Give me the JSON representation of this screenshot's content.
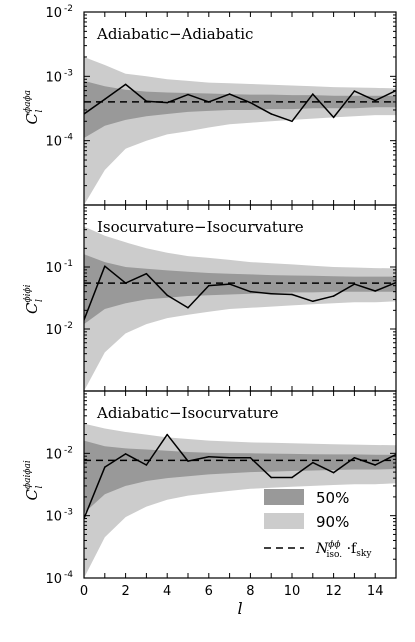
{
  "chart_data": [
    {
      "type": "area",
      "title": "Adiabatic−Adiabatic",
      "ylabel": {
        "main": "C",
        "sub": "l",
        "sup": "ϕaϕa"
      },
      "yscale": "log",
      "ylim": [
        1e-05,
        0.01
      ],
      "ytick_values": [
        0.0001,
        0.001,
        0.01
      ],
      "ytick_labels": [
        {
          "base": "10",
          "exp": "-4"
        },
        {
          "base": "10",
          "exp": "-3"
        },
        {
          "base": "10",
          "exp": "-2"
        }
      ],
      "xlim": [
        0,
        15
      ],
      "noise_level": 0.0004,
      "x": [
        0,
        1,
        2,
        3,
        4,
        5,
        6,
        7,
        8,
        9,
        10,
        11,
        12,
        13,
        14,
        15
      ],
      "band90_lower": [
        1e-05,
        3.5e-05,
        7.5e-05,
        0.0001,
        0.000125,
        0.00014,
        0.00016,
        0.00018,
        0.00019,
        0.0002,
        0.00021,
        0.00022,
        0.00023,
        0.00024,
        0.00025,
        0.00025
      ],
      "band90_upper": [
        0.002,
        0.0015,
        0.0011,
        0.001,
        0.0009,
        0.00085,
        0.0008,
        0.00078,
        0.00076,
        0.00074,
        0.00072,
        0.0007,
        0.00068,
        0.00067,
        0.00066,
        0.00065
      ],
      "band50_lower": [
        0.00011,
        0.00017,
        0.00021,
        0.00024,
        0.00026,
        0.00028,
        0.00029,
        0.0003,
        0.0003,
        0.00031,
        0.00031,
        0.00032,
        0.00032,
        0.00032,
        0.00033,
        0.00033
      ],
      "band50_upper": [
        0.00085,
        0.0007,
        0.00062,
        0.00058,
        0.00056,
        0.00055,
        0.00054,
        0.00053,
        0.00052,
        0.00052,
        0.00051,
        0.00051,
        0.0005,
        0.0005,
        0.0005,
        0.0005
      ],
      "measured": [
        0.00026,
        0.00044,
        0.00075,
        0.00041,
        0.00039,
        0.00052,
        0.0004,
        0.00053,
        0.00039,
        0.00026,
        0.0002,
        0.00053,
        0.00023,
        0.00059,
        0.00042,
        0.0006
      ]
    },
    {
      "type": "area",
      "title": "Isocurvature−Isocurvature",
      "ylabel": {
        "main": "C",
        "sub": "l",
        "sup": "ϕiϕi"
      },
      "yscale": "log",
      "ylim": [
        0.001,
        1
      ],
      "ytick_values": [
        0.01,
        0.1
      ],
      "ytick_labels": [
        {
          "base": "10",
          "exp": "-2"
        },
        {
          "base": "10",
          "exp": "-1"
        }
      ],
      "xlim": [
        0,
        15
      ],
      "noise_level": 0.055,
      "x": [
        0,
        1,
        2,
        3,
        4,
        5,
        6,
        7,
        8,
        9,
        10,
        11,
        12,
        13,
        14,
        15
      ],
      "band90_lower": [
        0.001,
        0.0042,
        0.0085,
        0.012,
        0.015,
        0.017,
        0.019,
        0.021,
        0.022,
        0.023,
        0.024,
        0.025,
        0.026,
        0.027,
        0.027,
        0.028
      ],
      "band90_upper": [
        0.45,
        0.32,
        0.25,
        0.2,
        0.17,
        0.15,
        0.14,
        0.13,
        0.12,
        0.115,
        0.11,
        0.105,
        0.1,
        0.098,
        0.096,
        0.095
      ],
      "band50_lower": [
        0.012,
        0.021,
        0.026,
        0.03,
        0.032,
        0.034,
        0.035,
        0.036,
        0.037,
        0.038,
        0.039,
        0.039,
        0.04,
        0.04,
        0.04,
        0.04
      ],
      "band50_upper": [
        0.16,
        0.12,
        0.1,
        0.094,
        0.088,
        0.084,
        0.08,
        0.078,
        0.076,
        0.074,
        0.073,
        0.072,
        0.071,
        0.07,
        0.07,
        0.07
      ],
      "measured": [
        0.014,
        0.103,
        0.055,
        0.078,
        0.035,
        0.022,
        0.05,
        0.053,
        0.04,
        0.037,
        0.036,
        0.028,
        0.034,
        0.053,
        0.041,
        0.056
      ]
    },
    {
      "type": "area",
      "title": "Adiabatic−Isocurvature",
      "ylabel": {
        "main": "C",
        "sub": "l",
        "sup": "ϕaiϕai"
      },
      "yscale": "log",
      "ylim": [
        0.0001,
        0.1
      ],
      "ytick_values": [
        0.0001,
        0.001,
        0.01
      ],
      "ytick_labels": [
        {
          "base": "10",
          "exp": "-4"
        },
        {
          "base": "10",
          "exp": "-3"
        },
        {
          "base": "10",
          "exp": "-2"
        }
      ],
      "xlim": [
        0,
        15
      ],
      "xticks": [
        0,
        2,
        4,
        6,
        8,
        10,
        12,
        14
      ],
      "xlabel": "l",
      "noise_level": 0.0077,
      "x": [
        0,
        1,
        2,
        3,
        4,
        5,
        6,
        7,
        8,
        9,
        10,
        11,
        12,
        13,
        14,
        15
      ],
      "band90_lower": [
        0.0001,
        0.00045,
        0.00095,
        0.0014,
        0.0018,
        0.0021,
        0.0023,
        0.0025,
        0.0027,
        0.0028,
        0.0029,
        0.003,
        0.0031,
        0.0032,
        0.0032,
        0.0033
      ],
      "band90_upper": [
        0.03,
        0.025,
        0.022,
        0.02,
        0.018,
        0.017,
        0.016,
        0.0155,
        0.015,
        0.0148,
        0.0145,
        0.0142,
        0.014,
        0.0138,
        0.0136,
        0.0135
      ],
      "band50_lower": [
        0.0011,
        0.0022,
        0.003,
        0.0036,
        0.004,
        0.0043,
        0.0046,
        0.0048,
        0.005,
        0.0051,
        0.0052,
        0.0053,
        0.0054,
        0.0055,
        0.0055,
        0.0056
      ],
      "band50_upper": [
        0.016,
        0.013,
        0.012,
        0.0115,
        0.011,
        0.0105,
        0.0102,
        0.0101,
        0.01,
        0.0099,
        0.0098,
        0.0097,
        0.0096,
        0.0096,
        0.0095,
        0.0095
      ],
      "measured": [
        0.0009,
        0.006,
        0.0098,
        0.0065,
        0.02,
        0.0075,
        0.0088,
        0.0085,
        0.0085,
        0.0041,
        0.0041,
        0.0071,
        0.0049,
        0.0085,
        0.0065,
        0.0096
      ]
    }
  ],
  "legend": {
    "placement": "lower-right of bottom panel",
    "band50_label": "50%",
    "band90_label": "90%",
    "noise_label": {
      "symbol": "N",
      "sup": "ϕϕ",
      "sub": "iso.",
      "rest": " ·f",
      "rest_sub": "sky"
    }
  },
  "colors": {
    "band90": "#cccccc",
    "band50": "#999999",
    "measured": "#000000",
    "noise": "#000000"
  }
}
